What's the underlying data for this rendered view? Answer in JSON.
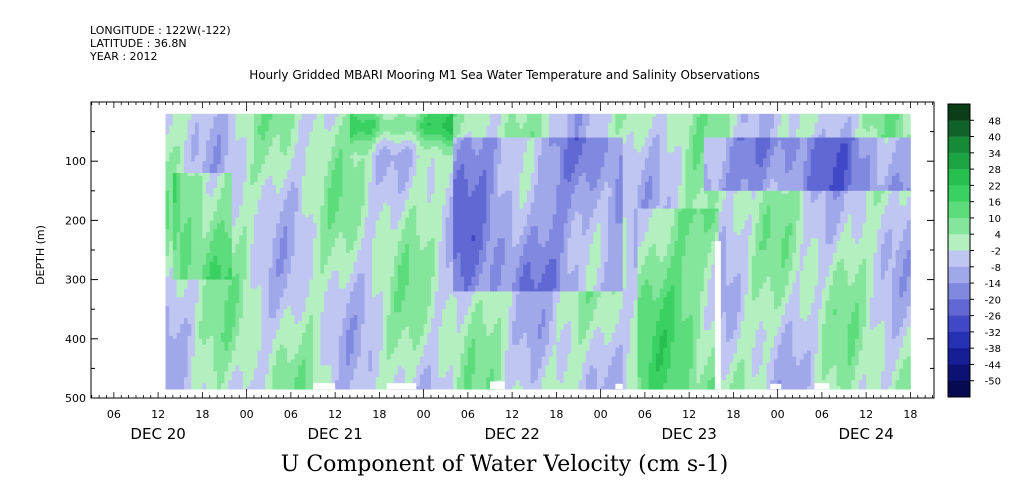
{
  "header": {
    "longitude": "LONGITUDE : 122W(-122)",
    "latitude": "LATITUDE : 36.8N",
    "year": "YEAR : 2012"
  },
  "chart_data": {
    "type": "heatmap",
    "title": "Hourly Gridded MBARI Mooring M1 Sea Water Temperature and Salinity Observations",
    "xlabel": "U Component of Water Velocity (cm s-1)",
    "ylabel": "DEPTH (m)",
    "y_ticks": [
      100,
      200,
      300,
      400,
      500
    ],
    "ylim": [
      0,
      500
    ],
    "y_direction": "depth increases downward",
    "x_hour_ticks": [
      "06",
      "12",
      "18",
      "00",
      "06",
      "12",
      "18",
      "00",
      "06",
      "12",
      "18",
      "00",
      "06",
      "12",
      "18",
      "00",
      "06",
      "12",
      "18"
    ],
    "x_day_labels": [
      "DEC 20",
      "DEC 21",
      "DEC 22",
      "DEC 23",
      "DEC 24"
    ],
    "data_range": {
      "depth_top": 20,
      "depth_bottom": 485,
      "time_start_label": "DEC 20 13:00",
      "time_end_label": "DEC 24 18:00"
    },
    "colorbar": {
      "labels": [
        "48",
        "40",
        "34",
        "28",
        "22",
        "16",
        "10",
        "4",
        "-2",
        "-8",
        "-14",
        "-20",
        "-26",
        "-32",
        "-38",
        "-44",
        "-50"
      ],
      "colors": [
        "#0b3d18",
        "#11622a",
        "#168a36",
        "#1ea543",
        "#27bf4f",
        "#3ad163",
        "#5ddc7c",
        "#86e59c",
        "#b4efc0",
        "#c0c6f2",
        "#a0a8ea",
        "#8088e0",
        "#6068d4",
        "#4048c6",
        "#2630b2",
        "#161e96",
        "#0c1272",
        "#060a50"
      ]
    }
  }
}
